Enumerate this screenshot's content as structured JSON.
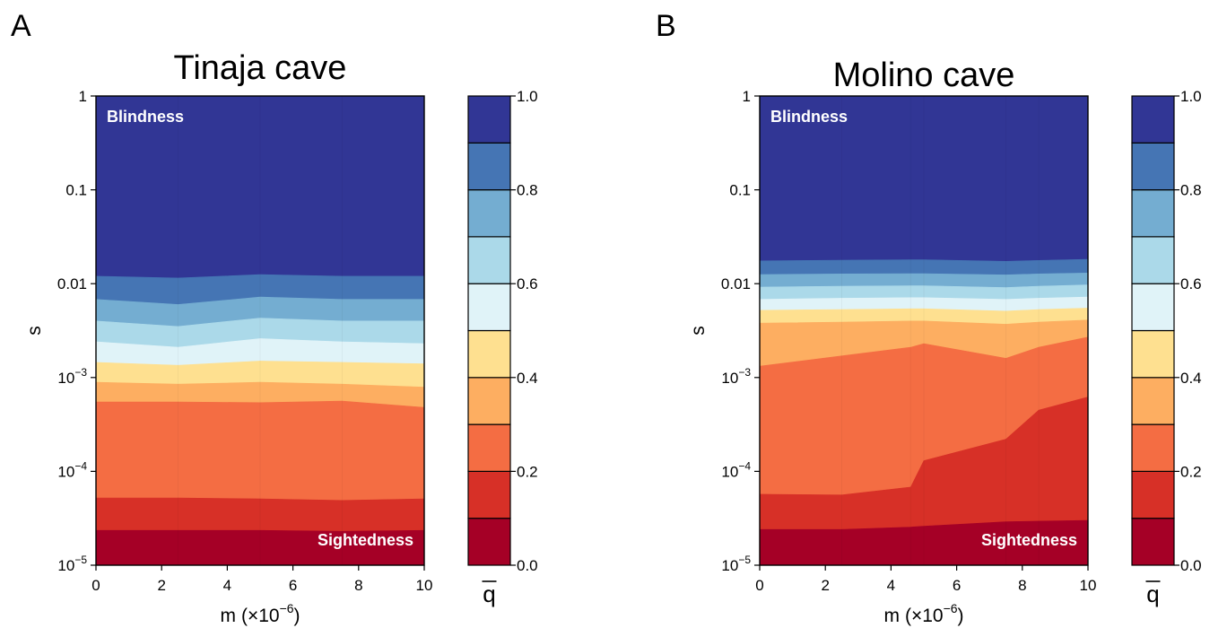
{
  "chart_data": [
    {
      "panel": "A",
      "type": "contour",
      "title": "Tinaja cave",
      "xlabel": "m",
      "xlabel_unit": "(×10",
      "xlabel_exp": "−6",
      "xlabel_close": ")",
      "ylabel": "s",
      "xlim": [
        0,
        10
      ],
      "ylim": [
        1e-05,
        1
      ],
      "y_scale": "log",
      "x_ticks": [
        0,
        2,
        4,
        6,
        8,
        10
      ],
      "x_tick_labels": [
        "0",
        "2",
        "4",
        "6",
        "8",
        "10"
      ],
      "y_ticks": [
        {
          "value": 1,
          "label": "1",
          "exp": ""
        },
        {
          "value": 0.1,
          "label": "0.1",
          "exp": ""
        },
        {
          "value": 0.01,
          "label": "0.01",
          "exp": ""
        },
        {
          "value": 0.001,
          "label": "10",
          "exp": "−3"
        },
        {
          "value": 0.0001,
          "label": "10",
          "exp": "−4"
        },
        {
          "value": 1e-05,
          "label": "10",
          "exp": "−5"
        }
      ],
      "annotations": {
        "top": "Blindness",
        "bottom": "Sightedness"
      },
      "m_grid": [
        0,
        2.5,
        5,
        7.5,
        10
      ],
      "contour_boundaries": [
        {
          "level": 0.1,
          "s": [
            2.35e-05,
            2.35e-05,
            2.35e-05,
            2.3e-05,
            2.35e-05
          ]
        },
        {
          "level": 0.2,
          "s": [
            5.2e-05,
            5.2e-05,
            5.1e-05,
            4.9e-05,
            5.1e-05
          ]
        },
        {
          "level": 0.3,
          "s": [
            0.00055,
            0.00055,
            0.00054,
            0.00056,
            0.00048
          ]
        },
        {
          "level": 0.4,
          "s": [
            0.00089,
            0.00085,
            0.00089,
            0.00085,
            0.00079
          ]
        },
        {
          "level": 0.5,
          "s": [
            0.00145,
            0.00135,
            0.0015,
            0.00145,
            0.0014
          ]
        },
        {
          "level": 0.6,
          "s": [
            0.0024,
            0.0021,
            0.0026,
            0.0024,
            0.0023
          ]
        },
        {
          "level": 0.7,
          "s": [
            0.004,
            0.0035,
            0.0043,
            0.004,
            0.004
          ]
        },
        {
          "level": 0.8,
          "s": [
            0.0068,
            0.006,
            0.0072,
            0.0068,
            0.0068
          ]
        },
        {
          "level": 0.9,
          "s": [
            0.012,
            0.0115,
            0.0125,
            0.012,
            0.012
          ]
        }
      ]
    },
    {
      "panel": "B",
      "type": "contour",
      "title": "Molino cave",
      "xlabel": "m",
      "xlabel_unit": "(×10",
      "xlabel_exp": "−6",
      "xlabel_close": ")",
      "ylabel": "s",
      "xlim": [
        0,
        10
      ],
      "ylim": [
        1e-05,
        1
      ],
      "y_scale": "log",
      "x_ticks": [
        0,
        2,
        4,
        6,
        8,
        10
      ],
      "x_tick_labels": [
        "0",
        "2",
        "4",
        "6",
        "8",
        "10"
      ],
      "y_ticks": [
        {
          "value": 1,
          "label": "1",
          "exp": ""
        },
        {
          "value": 0.1,
          "label": "0.1",
          "exp": ""
        },
        {
          "value": 0.01,
          "label": "0.01",
          "exp": ""
        },
        {
          "value": 0.001,
          "label": "10",
          "exp": "−3"
        },
        {
          "value": 0.0001,
          "label": "10",
          "exp": "−4"
        },
        {
          "value": 1e-05,
          "label": "10",
          "exp": "−5"
        }
      ],
      "annotations": {
        "top": "Blindness",
        "bottom": "Sightedness"
      },
      "m_grid": [
        0,
        2.5,
        4.6,
        5,
        7.5,
        8.5,
        10
      ],
      "contour_boundaries": [
        {
          "level": 0.1,
          "s": [
            2.4e-05,
            2.4e-05,
            2.55e-05,
            2.6e-05,
            2.9e-05,
            2.95e-05,
            3e-05
          ]
        },
        {
          "level": 0.2,
          "s": [
            5.7e-05,
            5.6e-05,
            6.8e-05,
            0.00013,
            0.00022,
            0.00045,
            0.00062
          ]
        },
        {
          "level": 0.3,
          "s": [
            0.00132,
            0.0017,
            0.0021,
            0.0023,
            0.0016,
            0.0021,
            0.0027
          ]
        },
        {
          "level": 0.4,
          "s": [
            0.0038,
            0.0039,
            0.004,
            0.004,
            0.0037,
            0.0039,
            0.0041
          ]
        },
        {
          "level": 0.5,
          "s": [
            0.0052,
            0.0053,
            0.0054,
            0.0054,
            0.0051,
            0.0053,
            0.0055
          ]
        },
        {
          "level": 0.6,
          "s": [
            0.0068,
            0.007,
            0.0071,
            0.0071,
            0.0068,
            0.007,
            0.0072
          ]
        },
        {
          "level": 0.7,
          "s": [
            0.0092,
            0.0094,
            0.0095,
            0.0095,
            0.0091,
            0.0094,
            0.0097
          ]
        },
        {
          "level": 0.8,
          "s": [
            0.0125,
            0.0127,
            0.0128,
            0.0128,
            0.0124,
            0.0127,
            0.013
          ]
        },
        {
          "level": 0.9,
          "s": [
            0.0175,
            0.0178,
            0.018,
            0.018,
            0.0173,
            0.0177,
            0.0182
          ]
        }
      ]
    }
  ],
  "colorbar": {
    "label": "q",
    "label_has_overbar": true,
    "levels": [
      0,
      0.1,
      0.2,
      0.3,
      0.4,
      0.5,
      0.6,
      0.7,
      0.8,
      0.9,
      1.0
    ],
    "tick_values": [
      0,
      0.2,
      0.4,
      0.6,
      0.8,
      1.0
    ],
    "tick_labels": [
      "0.0",
      "0.2",
      "0.4",
      "0.6",
      "0.8",
      "1.0"
    ],
    "colors": [
      "#a50026",
      "#d73027",
      "#f46d43",
      "#fdae61",
      "#fee090",
      "#e0f3f8",
      "#abd9e9",
      "#74add1",
      "#4575b4",
      "#313695"
    ]
  }
}
